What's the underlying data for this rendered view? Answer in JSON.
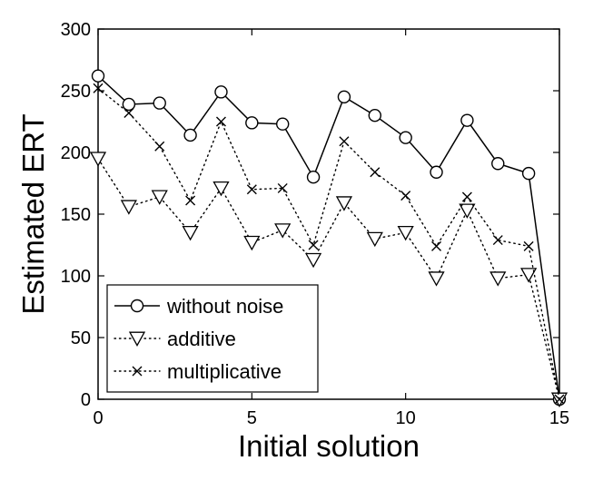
{
  "chart_data": {
    "type": "line",
    "xlabel": "Initial solution",
    "ylabel": "Estimated ERT",
    "xlim": [
      0,
      15
    ],
    "ylim": [
      0,
      300
    ],
    "xticks": [
      0,
      5,
      10,
      15
    ],
    "yticks": [
      0,
      50,
      100,
      150,
      200,
      250,
      300
    ],
    "grid": false,
    "legend_position": "bottom-left",
    "x": [
      0,
      1,
      2,
      3,
      4,
      5,
      6,
      7,
      8,
      9,
      10,
      11,
      12,
      13,
      14,
      15
    ],
    "series": [
      {
        "name": "without noise",
        "line_style": "solid",
        "marker": "circle",
        "color": "#000000",
        "values": [
          262,
          239,
          240,
          214,
          249,
          224,
          223,
          180,
          245,
          230,
          212,
          184,
          226,
          191,
          183,
          0
        ]
      },
      {
        "name": "additive",
        "line_style": "dotted",
        "marker": "triangle-down",
        "color": "#000000",
        "values": [
          195,
          156,
          164,
          135,
          171,
          127,
          137,
          113,
          159,
          130,
          135,
          98,
          153,
          98,
          101,
          0
        ]
      },
      {
        "name": "multiplicative",
        "line_style": "dotted",
        "marker": "x",
        "color": "#000000",
        "values": [
          252,
          232,
          205,
          161,
          225,
          170,
          171,
          125,
          209,
          184,
          165,
          124,
          164,
          129,
          124,
          0
        ]
      }
    ]
  }
}
